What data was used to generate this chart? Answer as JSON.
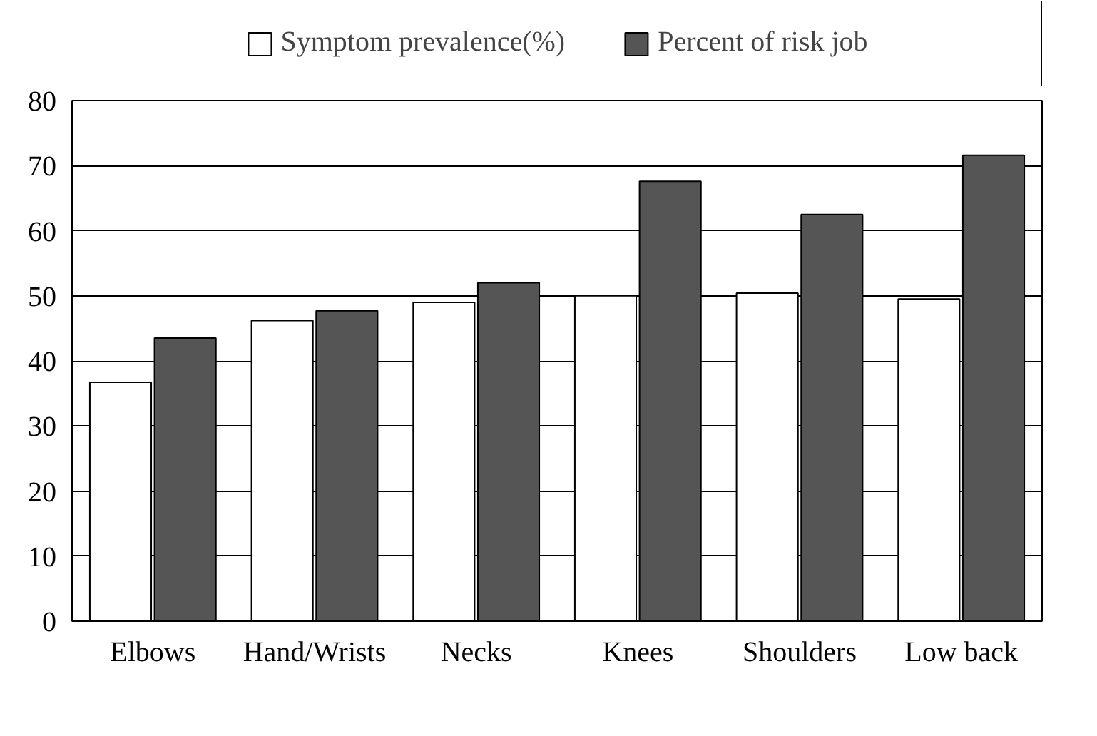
{
  "chart_data": {
    "type": "bar",
    "categories": [
      "Elbows",
      "Hand/Wrists",
      "Necks",
      "Knees",
      "Shoulders",
      "Low back"
    ],
    "series": [
      {
        "name": "Symptom prevalence(%)",
        "color": "#ffffff",
        "values": [
          36.7,
          46.2,
          49.0,
          50.0,
          50.4,
          49.5
        ]
      },
      {
        "name": "Percent of risk job",
        "color": "#555555",
        "values": [
          43.5,
          47.7,
          52.0,
          67.6,
          62.5,
          71.6
        ]
      }
    ],
    "ylim": [
      0,
      80
    ],
    "yticks": [
      0,
      10,
      20,
      30,
      40,
      50,
      60,
      70,
      80
    ],
    "grid": "y",
    "legend": "top"
  }
}
